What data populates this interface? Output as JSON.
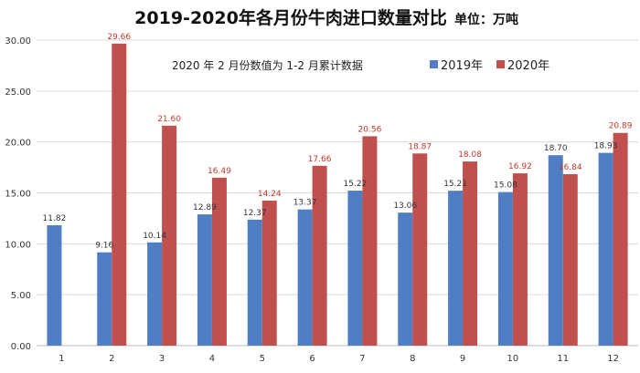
{
  "header": {
    "title": "2019-2020年各月份牛肉进口数量对比",
    "unit": "单位：万吨"
  },
  "annotation": "2020 年 2 月份数值为 1-2 月累计数据",
  "colors": {
    "series_2019": "#4f7ec4",
    "series_2020": "#c0504d",
    "label_2019": "#333333",
    "label_2020": "#c0392b",
    "grid": "#d9d9d9",
    "axis_text": "#333333"
  },
  "chart_data": {
    "type": "bar",
    "title": "2019-2020年各月份牛肉进口数量对比",
    "xlabel": "",
    "ylabel": "",
    "categories": [
      "1",
      "2",
      "3",
      "4",
      "5",
      "6",
      "7",
      "8",
      "9",
      "10",
      "11",
      "12"
    ],
    "ylim": [
      0,
      30
    ],
    "yticks": [
      "0.00",
      "5.00",
      "10.00",
      "15.00",
      "20.00",
      "25.00",
      "30.00"
    ],
    "grid": true,
    "legend_position": "top-right",
    "series": [
      {
        "name": "2019年",
        "values": [
          11.82,
          9.16,
          10.14,
          12.89,
          12.37,
          13.37,
          15.22,
          13.06,
          15.21,
          15.08,
          18.7,
          18.93
        ]
      },
      {
        "name": "2020年",
        "values": [
          null,
          29.66,
          21.6,
          16.49,
          14.24,
          17.66,
          20.56,
          18.87,
          18.08,
          16.92,
          16.84,
          20.89
        ]
      }
    ]
  }
}
